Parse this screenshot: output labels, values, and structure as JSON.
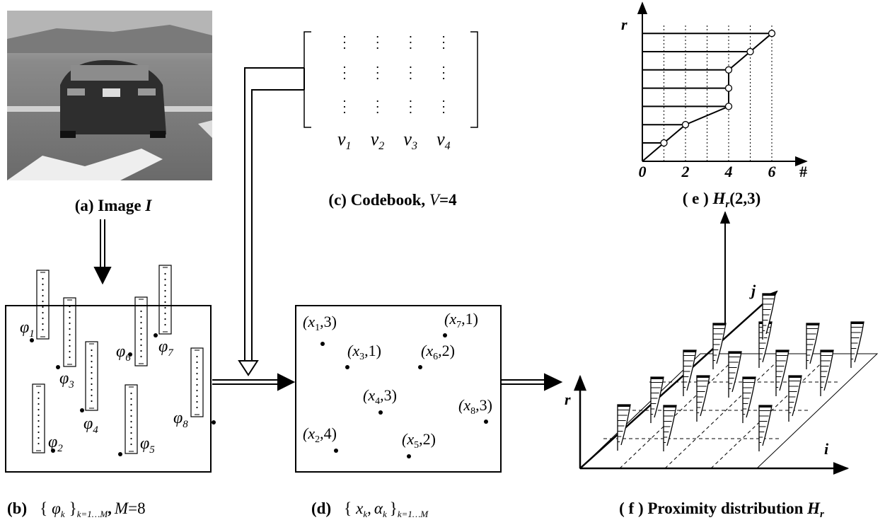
{
  "panel_a": {
    "caption": [
      "(a) Image",
      "I"
    ]
  },
  "panel_b": {
    "descriptors": [
      {
        "symbol": "φ",
        "index": "1"
      },
      {
        "symbol": "φ",
        "index": "2"
      },
      {
        "symbol": "φ",
        "index": "3"
      },
      {
        "symbol": "φ",
        "index": "4"
      },
      {
        "symbol": "φ",
        "index": "5"
      },
      {
        "symbol": "φ",
        "index": "6"
      },
      {
        "symbol": "φ",
        "index": "7"
      },
      {
        "symbol": "φ",
        "index": "8"
      }
    ],
    "caption": [
      "(b)",
      "{",
      "φ",
      "k",
      "}",
      "k=1…M",
      ",",
      "M",
      "=8"
    ]
  },
  "panel_c": {
    "codewords": [
      [
        "v",
        "1"
      ],
      [
        "v",
        "2"
      ],
      [
        "v",
        "3"
      ],
      [
        "v",
        "4"
      ]
    ],
    "caption": [
      "(c) Codebook,",
      "V",
      "=4"
    ]
  },
  "panel_d": {
    "points": [
      [
        "(x",
        "1",
        ",3)"
      ],
      [
        "(x",
        "2",
        ",4)"
      ],
      [
        "(x",
        "3",
        ",1)"
      ],
      [
        "(x",
        "4",
        ",3)"
      ],
      [
        "(x",
        "5",
        ",2)"
      ],
      [
        "(x",
        "6",
        ",2)"
      ],
      [
        "(x",
        "7",
        ",1)"
      ],
      [
        "(x",
        "8",
        ",3)"
      ]
    ],
    "caption": [
      "(d)",
      "{",
      "x",
      "k",
      ",",
      "α",
      "k",
      "}",
      "k=1…M"
    ]
  },
  "panel_e": {
    "y_label": "r",
    "x_label": "#",
    "x_ticks": [
      "0",
      "2",
      "4",
      "6"
    ],
    "counts": [
      1,
      2,
      4,
      4,
      4,
      5,
      6
    ],
    "caption": [
      "( e )",
      "H",
      "r",
      "(2,3)"
    ]
  },
  "panel_f": {
    "axis_r": "r",
    "axis_i": "i",
    "axis_j": "j",
    "caption": [
      "( f ) Proximity distribution",
      "H",
      "r"
    ]
  }
}
